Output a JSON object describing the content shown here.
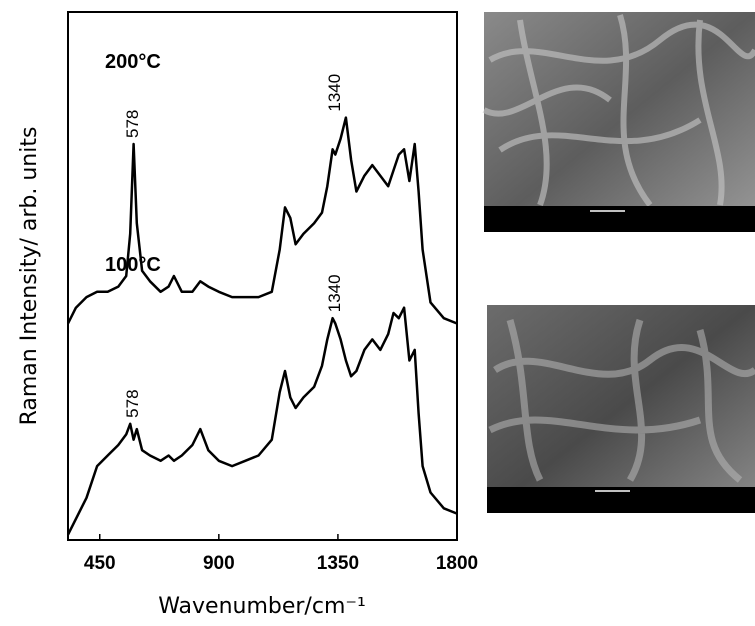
{
  "chart_data": {
    "type": "line",
    "xlabel": "Wavenumber/cm⁻¹",
    "ylabel": "Raman Intensity/ arb. units",
    "xlim": [
      330,
      1800
    ],
    "xticks": [
      450,
      900,
      1350,
      1800
    ],
    "ylim": [
      0,
      100
    ],
    "x": [
      330,
      360,
      400,
      440,
      480,
      520,
      550,
      565,
      578,
      590,
      610,
      640,
      680,
      710,
      730,
      760,
      800,
      830,
      860,
      900,
      950,
      1000,
      1050,
      1100,
      1130,
      1150,
      1170,
      1190,
      1220,
      1260,
      1290,
      1310,
      1330,
      1340,
      1360,
      1380,
      1400,
      1420,
      1450,
      1480,
      1510,
      1540,
      1560,
      1580,
      1600,
      1620,
      1640,
      1655,
      1670,
      1700,
      1750,
      1800
    ],
    "series": [
      {
        "name": "200°C",
        "color": "#000000",
        "values": [
          41,
          44,
          46,
          47,
          47,
          48,
          50,
          58,
          75,
          60,
          51,
          49,
          47,
          48,
          50,
          47,
          47,
          49,
          48,
          47,
          46,
          46,
          46,
          47,
          55,
          63,
          61,
          56,
          58,
          60,
          62,
          67,
          74,
          73,
          76,
          80,
          72,
          66,
          69,
          71,
          69,
          67,
          70,
          73,
          74,
          68,
          75,
          66,
          55,
          45,
          42,
          41
        ],
        "peaks": [
          {
            "value": 578,
            "label": "578"
          },
          {
            "value": 1340,
            "label": "1340"
          }
        ]
      },
      {
        "name": "100°C",
        "color": "#000000",
        "values": [
          1,
          4,
          8,
          14,
          16,
          18,
          20,
          22,
          19,
          21,
          17,
          16,
          15,
          16,
          15,
          16,
          18,
          21,
          17,
          15,
          14,
          15,
          16,
          19,
          28,
          32,
          27,
          25,
          27,
          29,
          33,
          38,
          42,
          41,
          38,
          34,
          31,
          32,
          36,
          38,
          36,
          39,
          43,
          42,
          44,
          34,
          36,
          24,
          14,
          9,
          6,
          5
        ],
        "peaks": [
          {
            "value": 578,
            "label": "578"
          },
          {
            "value": 1340,
            "label": "1340"
          }
        ]
      }
    ]
  }
}
